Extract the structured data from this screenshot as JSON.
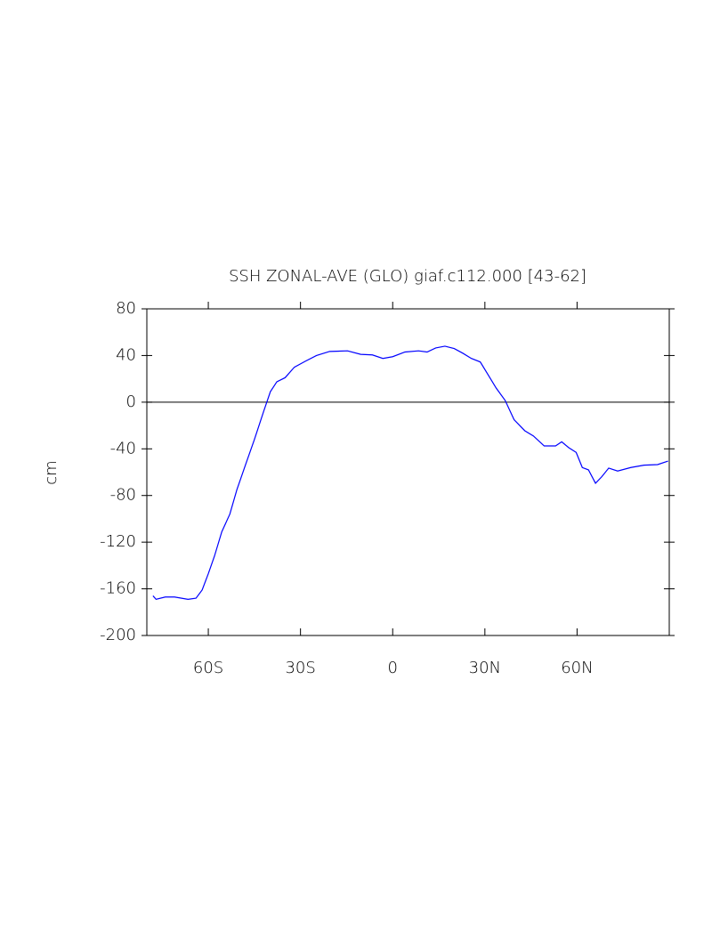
{
  "chart_data": {
    "type": "line",
    "title": "SSH ZONAL-AVE (GLO) giaf.c112.000 [43-62]",
    "y_label": "cm",
    "xlim": [
      -80,
      90
    ],
    "ylim": [
      -200,
      80
    ],
    "xticks": [
      {
        "value": -60,
        "label": "60S"
      },
      {
        "value": -30,
        "label": "30S"
      },
      0,
      {
        "value": 30,
        "label": "30N"
      },
      {
        "value": 60,
        "label": "60N"
      }
    ],
    "yticks": [
      80,
      40,
      0,
      -40,
      -80,
      -120,
      -160,
      -200
    ],
    "zero_line": true,
    "series": [
      {
        "color": "#0000ff",
        "x": [
          -78,
          -77,
          -74,
          -71,
          -66.6,
          -64,
          -62,
          -60,
          -58,
          -55.6,
          -53,
          -50.7,
          -47.8,
          -45,
          -42,
          -39.8,
          -37.7,
          -35,
          -32,
          -28.5,
          -24.8,
          -20.5,
          -14.7,
          -10.4,
          -6.6,
          -3.2,
          0,
          4,
          8.4,
          11.2,
          14,
          17,
          20,
          22.8,
          25.6,
          28.5,
          30.8,
          33.7,
          36.6,
          39.5,
          43,
          45.8,
          49.3,
          53,
          55,
          57.3,
          59.7,
          61.7,
          63.7,
          66,
          68,
          70.3,
          73.2,
          77.5,
          81.8,
          86.2,
          89.6
        ],
        "values": [
          -166,
          -169,
          -167,
          -167,
          -169,
          -168,
          -161,
          -147,
          -132,
          -111,
          -96,
          -75,
          -53,
          -32,
          -8,
          9,
          17.5,
          21,
          30,
          35,
          40,
          43.5,
          44,
          41,
          40.5,
          37.5,
          39,
          43,
          44,
          43,
          46.5,
          48,
          46,
          42,
          37.5,
          34.5,
          24.5,
          12,
          1.5,
          -15,
          -24.5,
          -29,
          -37.5,
          -37.5,
          -34,
          -39,
          -43,
          -56,
          -58,
          -69.5,
          -64,
          -56.5,
          -59,
          -56,
          -54,
          -53.5,
          -50.5
        ]
      }
    ]
  }
}
